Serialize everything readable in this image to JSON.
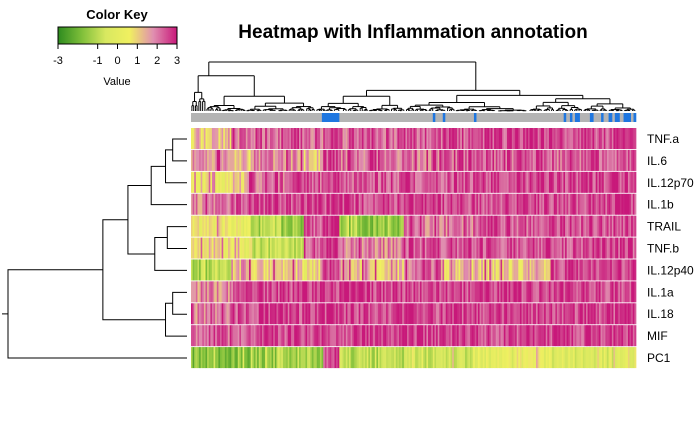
{
  "chart_data": {
    "type": "heatmap",
    "title": "Heatmap with Inflammation annotation",
    "color_key": {
      "title": "Color Key",
      "axis_label": "Value",
      "ticks": [
        -3,
        -1,
        0,
        1,
        2,
        3
      ],
      "tick_labels": [
        "-3",
        "-1",
        "0",
        "1",
        "2",
        "3"
      ],
      "range": [
        -3,
        3
      ],
      "colors": [
        "#2e8b1f",
        "#7fbf3a",
        "#d8e860",
        "#f0f060",
        "#e08fb0",
        "#c8187a"
      ]
    },
    "rows": [
      "TNF.a",
      "IL.6",
      "IL.12p70",
      "IL.1b",
      "TRAIL",
      "TNF.b",
      "IL.12p40",
      "IL.1a",
      "IL.18",
      "MIF",
      "PC1"
    ],
    "annotation": {
      "categories": [
        "grey",
        "blue"
      ],
      "colors": {
        "grey": "#b4b4b4",
        "blue": "#1f77e0"
      }
    },
    "column_clusters": [
      {
        "width": 25,
        "mean": [
          1.2,
          1.6,
          0.4,
          1.8,
          0.6,
          0.6,
          -1.2,
          1.8,
          1.8,
          2.2,
          -1.8
        ]
      },
      {
        "width": 12,
        "mean": [
          2.0,
          1.2,
          1.2,
          2.4,
          0.3,
          0.3,
          1.4,
          2.4,
          2.4,
          2.4,
          -1.6
        ]
      },
      {
        "width": 18,
        "mean": [
          2.3,
          1.8,
          2.2,
          2.6,
          -1.2,
          -0.8,
          1.0,
          2.6,
          2.6,
          2.6,
          -1.4
        ]
      },
      {
        "width": 15,
        "mean": [
          2.3,
          1.8,
          2.2,
          2.6,
          -1.4,
          -1.0,
          1.0,
          2.6,
          2.6,
          2.6,
          -1.2
        ]
      },
      {
        "width": 12,
        "mean": [
          2.0,
          1.2,
          2.4,
          2.6,
          2.4,
          2.4,
          0.6,
          2.6,
          2.6,
          2.6,
          -1.4
        ]
      },
      {
        "width": 10,
        "mean": [
          2.6,
          2.6,
          2.6,
          2.6,
          2.6,
          2.6,
          2.6,
          2.6,
          2.6,
          2.6,
          2.6
        ]
      },
      {
        "width": 40,
        "mean": [
          2.2,
          2.0,
          2.4,
          2.6,
          -1.6,
          1.8,
          1.2,
          2.6,
          2.6,
          2.6,
          -1.0
        ]
      },
      {
        "width": 25,
        "mean": [
          2.4,
          2.0,
          2.4,
          2.6,
          2.0,
          2.4,
          2.0,
          2.6,
          2.6,
          2.6,
          -0.6
        ]
      },
      {
        "width": 18,
        "mean": [
          2.4,
          2.2,
          2.4,
          2.6,
          2.0,
          2.4,
          1.2,
          2.6,
          2.6,
          2.6,
          -0.6
        ]
      },
      {
        "width": 48,
        "mean": [
          2.5,
          2.3,
          2.6,
          2.6,
          2.4,
          2.5,
          1.0,
          2.6,
          2.6,
          2.6,
          0.0
        ]
      },
      {
        "width": 30,
        "mean": [
          2.5,
          2.3,
          2.6,
          2.6,
          2.5,
          2.5,
          2.4,
          2.6,
          2.6,
          2.6,
          -0.2
        ]
      },
      {
        "width": 23,
        "mean": [
          2.5,
          2.4,
          2.6,
          2.6,
          2.5,
          2.5,
          2.6,
          2.6,
          2.6,
          2.6,
          -0.4
        ]
      }
    ],
    "annotation_runs": [
      {
        "count": 105,
        "cat": "grey"
      },
      {
        "count": 14,
        "cat": "blue"
      },
      {
        "count": 75,
        "cat": "grey"
      },
      {
        "count": 2,
        "cat": "blue"
      },
      {
        "count": 6,
        "cat": "grey"
      },
      {
        "count": 2,
        "cat": "blue"
      },
      {
        "count": 23,
        "cat": "grey"
      },
      {
        "count": 2,
        "cat": "blue"
      },
      {
        "count": 70,
        "cat": "grey"
      },
      {
        "count": 2,
        "cat": "blue"
      },
      {
        "count": 3,
        "cat": "grey"
      },
      {
        "count": 2,
        "cat": "blue"
      },
      {
        "count": 2,
        "cat": "grey"
      },
      {
        "count": 4,
        "cat": "blue"
      },
      {
        "count": 8,
        "cat": "grey"
      },
      {
        "count": 3,
        "cat": "blue"
      },
      {
        "count": 6,
        "cat": "grey"
      },
      {
        "count": 2,
        "cat": "blue"
      },
      {
        "count": 4,
        "cat": "grey"
      },
      {
        "count": 3,
        "cat": "blue"
      },
      {
        "count": 2,
        "cat": "grey"
      },
      {
        "count": 4,
        "cat": "blue"
      },
      {
        "count": 3,
        "cat": "grey"
      },
      {
        "count": 6,
        "cat": "blue"
      },
      {
        "count": 2,
        "cat": "grey"
      },
      {
        "count": 2,
        "cat": "blue"
      }
    ],
    "row_dendrogram": [
      {
        "a": 0,
        "b": 1,
        "h": 0.08
      },
      {
        "a": "n0",
        "b": 2,
        "h": 0.12
      },
      {
        "a": "n1",
        "b": 3,
        "h": 0.2
      },
      {
        "a": 4,
        "b": 5,
        "h": 0.11
      },
      {
        "a": "n3",
        "b": 6,
        "h": 0.18
      },
      {
        "a": "n2",
        "b": "n4",
        "h": 0.33
      },
      {
        "a": 7,
        "b": 8,
        "h": 0.08
      },
      {
        "a": "n6",
        "b": 9,
        "h": 0.12
      },
      {
        "a": "n5",
        "b": "n7",
        "h": 0.47
      },
      {
        "a": "n8",
        "b": 10,
        "h": 1.0
      }
    ],
    "column_dendrogram": {
      "root_height": 1.0,
      "left_group": {
        "from": 0.0,
        "to": 0.28,
        "height": 0.72
      },
      "right_group": {
        "from": 0.28,
        "to": 1.0,
        "height": 0.42
      }
    }
  }
}
